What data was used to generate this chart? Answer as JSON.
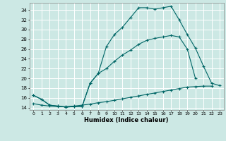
{
  "xlabel": "Humidex (Indice chaleur)",
  "background_color": "#cce8e4",
  "grid_color": "#ffffff",
  "line_color": "#006666",
  "xlim": [
    -0.5,
    23.5
  ],
  "ylim": [
    13.5,
    35.5
  ],
  "xticks": [
    0,
    1,
    2,
    3,
    4,
    5,
    6,
    7,
    8,
    9,
    10,
    11,
    12,
    13,
    14,
    15,
    16,
    17,
    18,
    19,
    20,
    21,
    22,
    23
  ],
  "yticks": [
    14,
    16,
    18,
    20,
    22,
    24,
    26,
    28,
    30,
    32,
    34
  ],
  "curve1_x": [
    0,
    1,
    2,
    3,
    4,
    5,
    6,
    7,
    8,
    9,
    10,
    11,
    12,
    13,
    14,
    15,
    16,
    17,
    18,
    19,
    20,
    21,
    22,
    23
  ],
  "curve1_y": [
    16.5,
    15.7,
    14.5,
    14.3,
    14.1,
    14.2,
    14.2,
    19.0,
    21.0,
    26.5,
    29.0,
    30.5,
    32.5,
    34.5,
    34.5,
    34.2,
    34.5,
    34.8,
    32.0,
    29.0,
    26.2,
    22.5,
    19.0,
    18.5
  ],
  "curve2_x": [
    0,
    1,
    2,
    3,
    4,
    5,
    6,
    7,
    8,
    9,
    10,
    11,
    12,
    13,
    14,
    15,
    16,
    17,
    18,
    19,
    20,
    21,
    22,
    23
  ],
  "curve2_y": [
    16.5,
    15.7,
    14.5,
    14.3,
    14.1,
    14.2,
    14.2,
    19.0,
    21.0,
    22.0,
    23.5,
    24.8,
    25.8,
    27.0,
    27.8,
    28.2,
    28.5,
    28.8,
    28.5,
    26.0,
    20.0,
    null,
    null,
    null
  ],
  "curve3_x": [
    0,
    1,
    2,
    3,
    4,
    5,
    6,
    7,
    8,
    9,
    10,
    11,
    12,
    13,
    14,
    15,
    16,
    17,
    18,
    19,
    20,
    21,
    22,
    23
  ],
  "curve3_y": [
    14.8,
    14.5,
    14.3,
    14.2,
    14.2,
    14.3,
    14.5,
    14.7,
    15.0,
    15.2,
    15.5,
    15.8,
    16.1,
    16.4,
    16.7,
    17.0,
    17.3,
    17.6,
    17.9,
    18.2,
    18.3,
    18.4,
    18.4,
    null
  ]
}
